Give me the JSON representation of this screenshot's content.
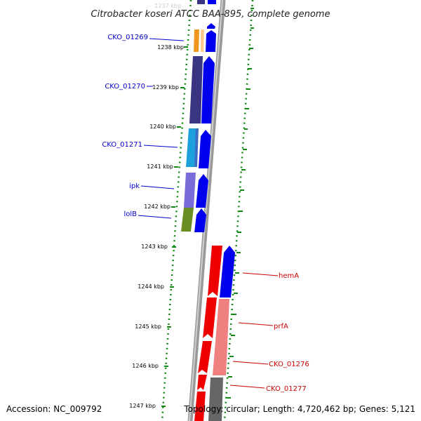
{
  "title": "Citrobacter koseri ATCC BAA-895, complete genome",
  "footer": {
    "accession": "Accession: NC_009792",
    "topology": "Topology: circular; Length: 4,720,462 bp; Genes: 5,121"
  },
  "scale": {
    "ticks": [
      {
        "label": "1237 kbp"
      },
      {
        "label": "1238 kbp"
      },
      {
        "label": "1239 kbp"
      },
      {
        "label": "1240 kbp"
      },
      {
        "label": "1241 kbp"
      },
      {
        "label": "1242 kbp"
      },
      {
        "label": "1243 kbp"
      },
      {
        "label": "1244 kbp"
      },
      {
        "label": "1245 kbp"
      },
      {
        "label": "1246 kbp"
      },
      {
        "label": "1247 kbp"
      }
    ]
  },
  "gene_labels": {
    "cko_01269": "CKO_01269",
    "cko_01270": "CKO_01270",
    "cko_01271": "CKO_01271",
    "ipk": "ipk",
    "lolb": "lolB",
    "hema": "hemA",
    "prfa": "prfA",
    "cko_01276": "CKO_01276",
    "cko_01277": "CKO_01277"
  },
  "colors": {
    "left_label": "#0000cc",
    "right_label": "#cc0000",
    "backbone": "#888888",
    "ruler_dots": "#118811",
    "forward_gene": "#0000ee",
    "reverse_gene": "#ee0000"
  }
}
